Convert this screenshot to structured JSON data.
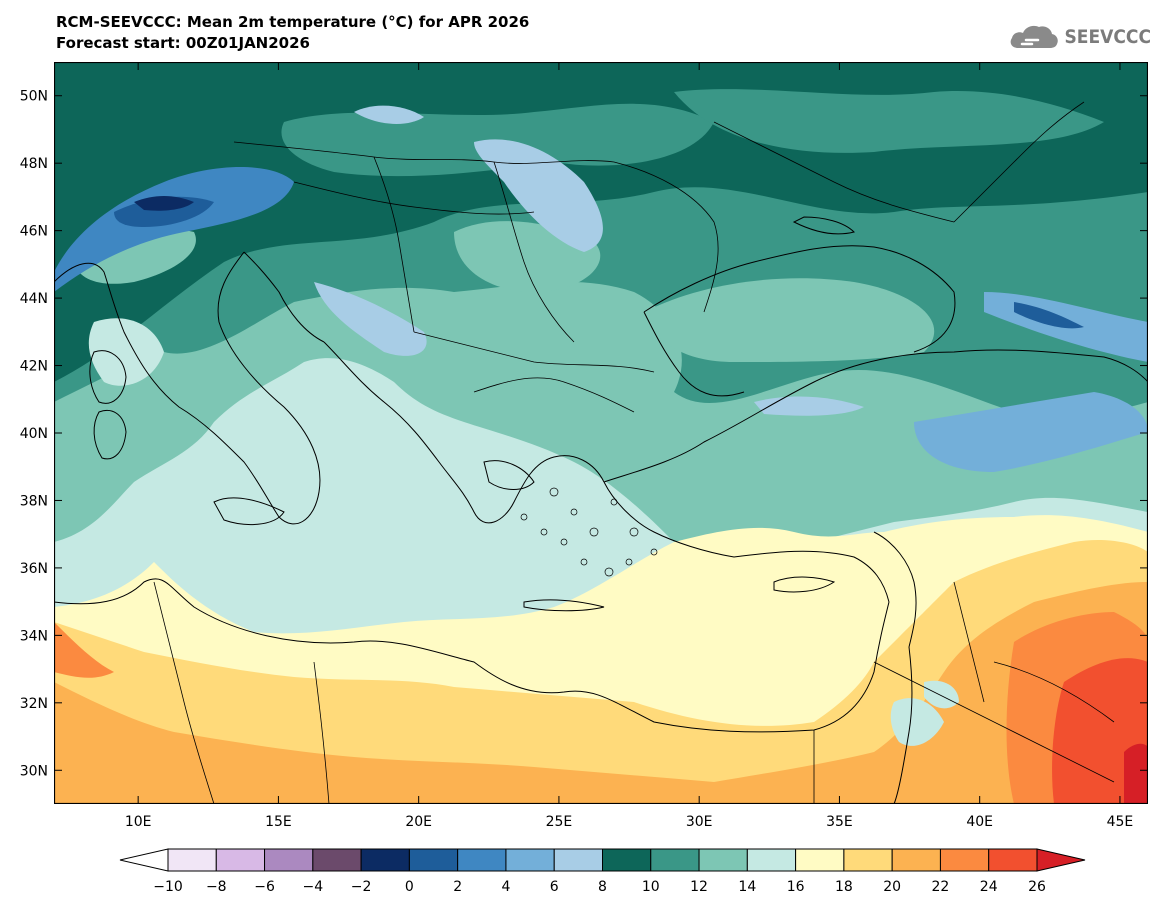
{
  "header": {
    "title": "RCM-SEEVCCC: Mean 2m temperature (°C) for APR 2026",
    "subtitle": "Forecast start: 00Z01JAN2026",
    "logo_text": "SEEVCCC"
  },
  "chart_data": {
    "type": "heatmap",
    "variable": "Mean 2m temperature (°C)",
    "lon_range": [
      7,
      46
    ],
    "lat_range": [
      29,
      51
    ],
    "lon_ticks": [
      "10E",
      "15E",
      "20E",
      "25E",
      "30E",
      "35E",
      "40E",
      "45E"
    ],
    "lat_ticks": [
      "30N",
      "32N",
      "34N",
      "36N",
      "38N",
      "40N",
      "42N",
      "44N",
      "46N",
      "48N",
      "50N"
    ],
    "lon_tick_values": [
      10,
      15,
      20,
      25,
      30,
      35,
      40,
      45
    ],
    "lat_tick_values": [
      30,
      32,
      34,
      36,
      38,
      40,
      42,
      44,
      46,
      48,
      50
    ],
    "colorbar": {
      "labels": [
        "−10",
        "−8",
        "−6",
        "−4",
        "−2",
        "0",
        "2",
        "4",
        "6",
        "8",
        "10",
        "12",
        "14",
        "16",
        "18",
        "20",
        "22",
        "24",
        "26"
      ],
      "colors": [
        "#ffffff",
        "#f1e6f6",
        "#d8b9e6",
        "#ab89c0",
        "#6b4a6b",
        "#0c2b63",
        "#1e5d9a",
        "#3f87c2",
        "#73afd9",
        "#a8cde6",
        "#0d6659",
        "#3a9787",
        "#7dc6b4",
        "#c5e9e3",
        "#fffbc4",
        "#ffda7a",
        "#fcb251",
        "#fb8a40",
        "#f2502f",
        "#d61f26"
      ]
    }
  }
}
